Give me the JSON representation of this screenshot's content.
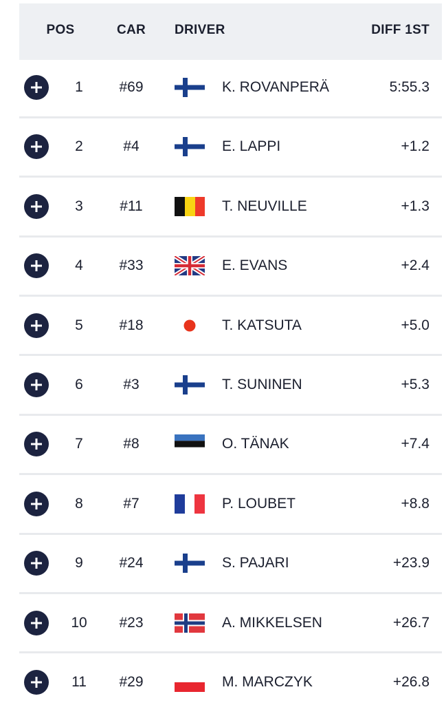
{
  "table": {
    "columns": [
      "POS",
      "CAR",
      "DRIVER",
      "DIFF 1ST"
    ],
    "rows": [
      [
        "1",
        "#69",
        "K. ROVANPERÄ",
        "5:55.3"
      ],
      [
        "2",
        "#4",
        "E. LAPPI",
        "+1.2"
      ],
      [
        "3",
        "#11",
        "T. NEUVILLE",
        "+1.3"
      ],
      [
        "4",
        "#33",
        "E. EVANS",
        "+2.4"
      ],
      [
        "5",
        "#18",
        "T. KATSUTA",
        "+5.0"
      ],
      [
        "6",
        "#3",
        "T. SUNINEN",
        "+5.3"
      ],
      [
        "7",
        "#8",
        "O. TÄNAK",
        "+7.4"
      ],
      [
        "8",
        "#7",
        "P. LOUBET",
        "+8.8"
      ],
      [
        "9",
        "#24",
        "S. PAJARI",
        "+23.9"
      ],
      [
        "10",
        "#23",
        "A. MIKKELSEN",
        "+26.7"
      ],
      [
        "11",
        "#29",
        "M. MARCZYK",
        "+26.8"
      ]
    ]
  }
}
